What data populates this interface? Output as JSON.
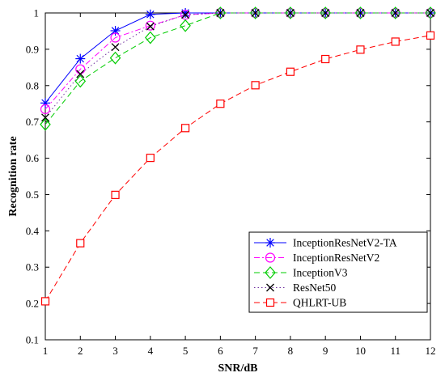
{
  "chart_data": {
    "type": "line",
    "title": "",
    "xlabel": "SNR/dB",
    "ylabel": "Recognition rate",
    "x": [
      1,
      2,
      3,
      4,
      5,
      6,
      7,
      8,
      9,
      10,
      11,
      12
    ],
    "xlim": [
      1,
      12
    ],
    "ylim": [
      0.1,
      1
    ],
    "xticks": [
      "1",
      "2",
      "3",
      "4",
      "5",
      "6",
      "7",
      "8",
      "9",
      "10",
      "11",
      "12"
    ],
    "yticks": [
      "0.1",
      "0.2",
      "0.3",
      "0.4",
      "0.5",
      "0.6",
      "0.7",
      "0.8",
      "0.9",
      "1"
    ],
    "grid": false,
    "legend_position": "bottom-right",
    "series": [
      {
        "name": "InceptionResNetV2-TA",
        "color": "#0000ff",
        "marker": "asterisk",
        "dash": "solid",
        "values": [
          0.752,
          0.874,
          0.951,
          0.996,
          1.0,
          1.0,
          1.0,
          1.0,
          1.0,
          1.0,
          1.0,
          1.0
        ]
      },
      {
        "name": "InceptionResNetV2",
        "color": "#ff00ff",
        "marker": "circle",
        "dash": "dashdot",
        "values": [
          0.735,
          0.845,
          0.932,
          0.965,
          0.995,
          1.0,
          1.0,
          1.0,
          1.0,
          1.0,
          1.0,
          1.0
        ]
      },
      {
        "name": "InceptionV3",
        "color": "#00cc00",
        "marker": "diamond",
        "dash": "dashed",
        "values": [
          0.693,
          0.812,
          0.876,
          0.932,
          0.965,
          1.0,
          1.0,
          1.0,
          1.0,
          1.0,
          1.0,
          1.0
        ]
      },
      {
        "name": "ResNet50",
        "color": "#7030a0",
        "marker": "x",
        "dash": "dotted",
        "values": [
          0.712,
          0.832,
          0.906,
          0.963,
          0.995,
          1.0,
          1.0,
          1.0,
          1.0,
          1.0,
          1.0,
          1.0
        ]
      },
      {
        "name": "QHLRT-UB",
        "color": "#ff0000",
        "marker": "square",
        "dash": "dashed",
        "values": [
          0.206,
          0.366,
          0.499,
          0.601,
          0.683,
          0.75,
          0.801,
          0.838,
          0.873,
          0.899,
          0.921,
          0.938
        ]
      }
    ]
  }
}
